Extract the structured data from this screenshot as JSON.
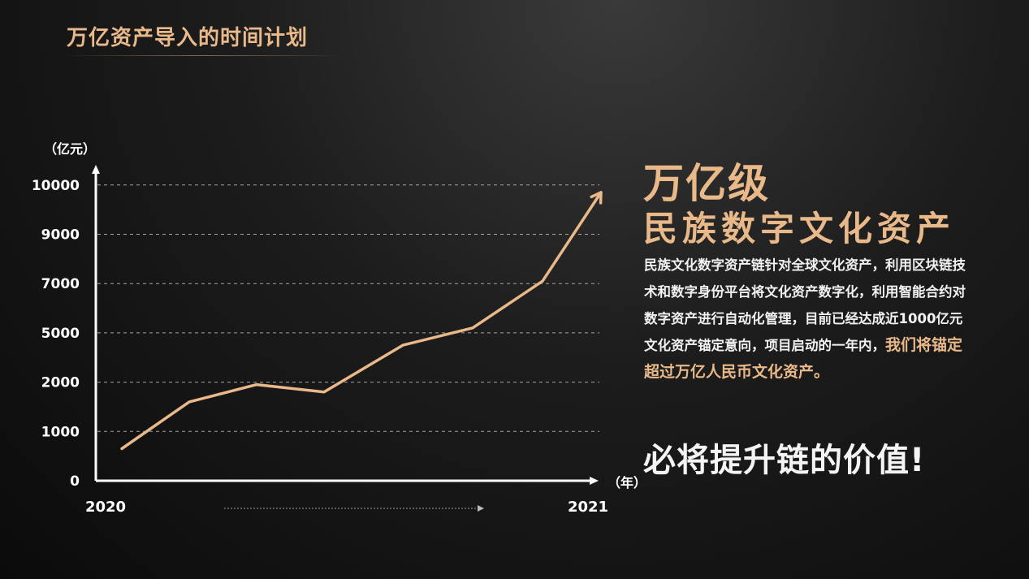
{
  "page": {
    "title": "万亿资产导入的时间计划"
  },
  "right_panel": {
    "headline_1": "万亿级",
    "headline_2": "民族数字文化资产",
    "body_normal": "民族文化数字资产链针对全球文化资产，利用区块链技术和数字身份平台将文化资产数字化，利用智能合约对数字资产进行自动化管理，目前已经达成近1000亿元文化资产锚定意向，项目启动的一年内，",
    "body_highlight": "我们将锚定超过万亿人民币文化资产。",
    "tagline": "必将提升链的价值!"
  },
  "colors": {
    "accent": "#e9b98a",
    "background": "#1a1a1a",
    "axis": "#ffffff"
  },
  "chart_data": {
    "type": "line",
    "y_unit_label": "（亿元）",
    "x_unit_label": "（年）",
    "y_tick_labels": [
      "0",
      "1000",
      "2000",
      "5000",
      "7000",
      "9000",
      "10000"
    ],
    "x_tick_labels": [
      "2020",
      "2021"
    ],
    "y_positions_are_categorical_steps": true,
    "series": [
      {
        "color": "#e9b98a",
        "y_steps": [
          0.65,
          1.6,
          1.95,
          1.8,
          2.75,
          3.1,
          4.05,
          5.85
        ]
      }
    ],
    "grid": "dashed horizontal",
    "legend": "none"
  }
}
